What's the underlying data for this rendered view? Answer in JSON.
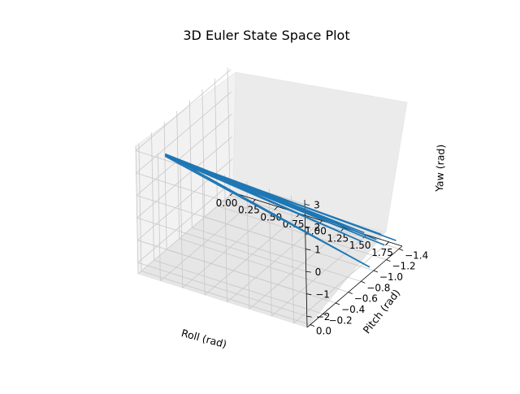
{
  "chart_data": {
    "type": "line",
    "projection": "3d",
    "title": "3D Euler State Space Plot",
    "xlabel": "Roll (rad)",
    "ylabel": "Pitch (rad)",
    "zlabel": "Yaw (rad)",
    "x_ticks": [
      "0.00",
      "0.25",
      "0.50",
      "0.75",
      "1.00",
      "1.25",
      "1.50",
      "1.75"
    ],
    "y_ticks": [
      "−1.4",
      "−1.2",
      "−1.0",
      "−0.8",
      "−0.6",
      "−0.4",
      "−0.2",
      "0.0"
    ],
    "z_ticks": [
      "−2",
      "−1",
      "0",
      "1",
      "2",
      "3"
    ],
    "xlim": [
      0,
      1.9
    ],
    "ylim": [
      -1.45,
      0.05
    ],
    "zlim": [
      -2.5,
      3.2
    ],
    "grid": true,
    "series": [
      {
        "color": "#1f77b4",
        "points": [
          {
            "x": 0.3,
            "y": 0.0,
            "z": 3.0
          },
          {
            "x": 1.7,
            "y": -1.1,
            "z": -1.7
          },
          {
            "x": 0.3,
            "y": 0.0,
            "z": 3.1
          },
          {
            "x": 1.75,
            "y": -1.25,
            "z": -1.9
          },
          {
            "x": 0.3,
            "y": 0.0,
            "z": 3.0
          },
          {
            "x": 1.8,
            "y": -1.3,
            "z": -2.2
          },
          {
            "x": 0.3,
            "y": 0.0,
            "z": 3.05
          },
          {
            "x": 1.9,
            "y": -1.35,
            "z": -2.0
          },
          {
            "x": 0.3,
            "y": 0.0,
            "z": 3.0
          },
          {
            "x": 1.65,
            "y": -1.2,
            "z": -1.6
          },
          {
            "x": 0.3,
            "y": 0.0,
            "z": 3.1
          },
          {
            "x": 1.85,
            "y": -1.0,
            "z": -2.4
          },
          {
            "x": 0.3,
            "y": 0.0,
            "z": 3.0
          },
          {
            "x": 1.7,
            "y": -1.4,
            "z": -2.1
          }
        ]
      }
    ]
  }
}
